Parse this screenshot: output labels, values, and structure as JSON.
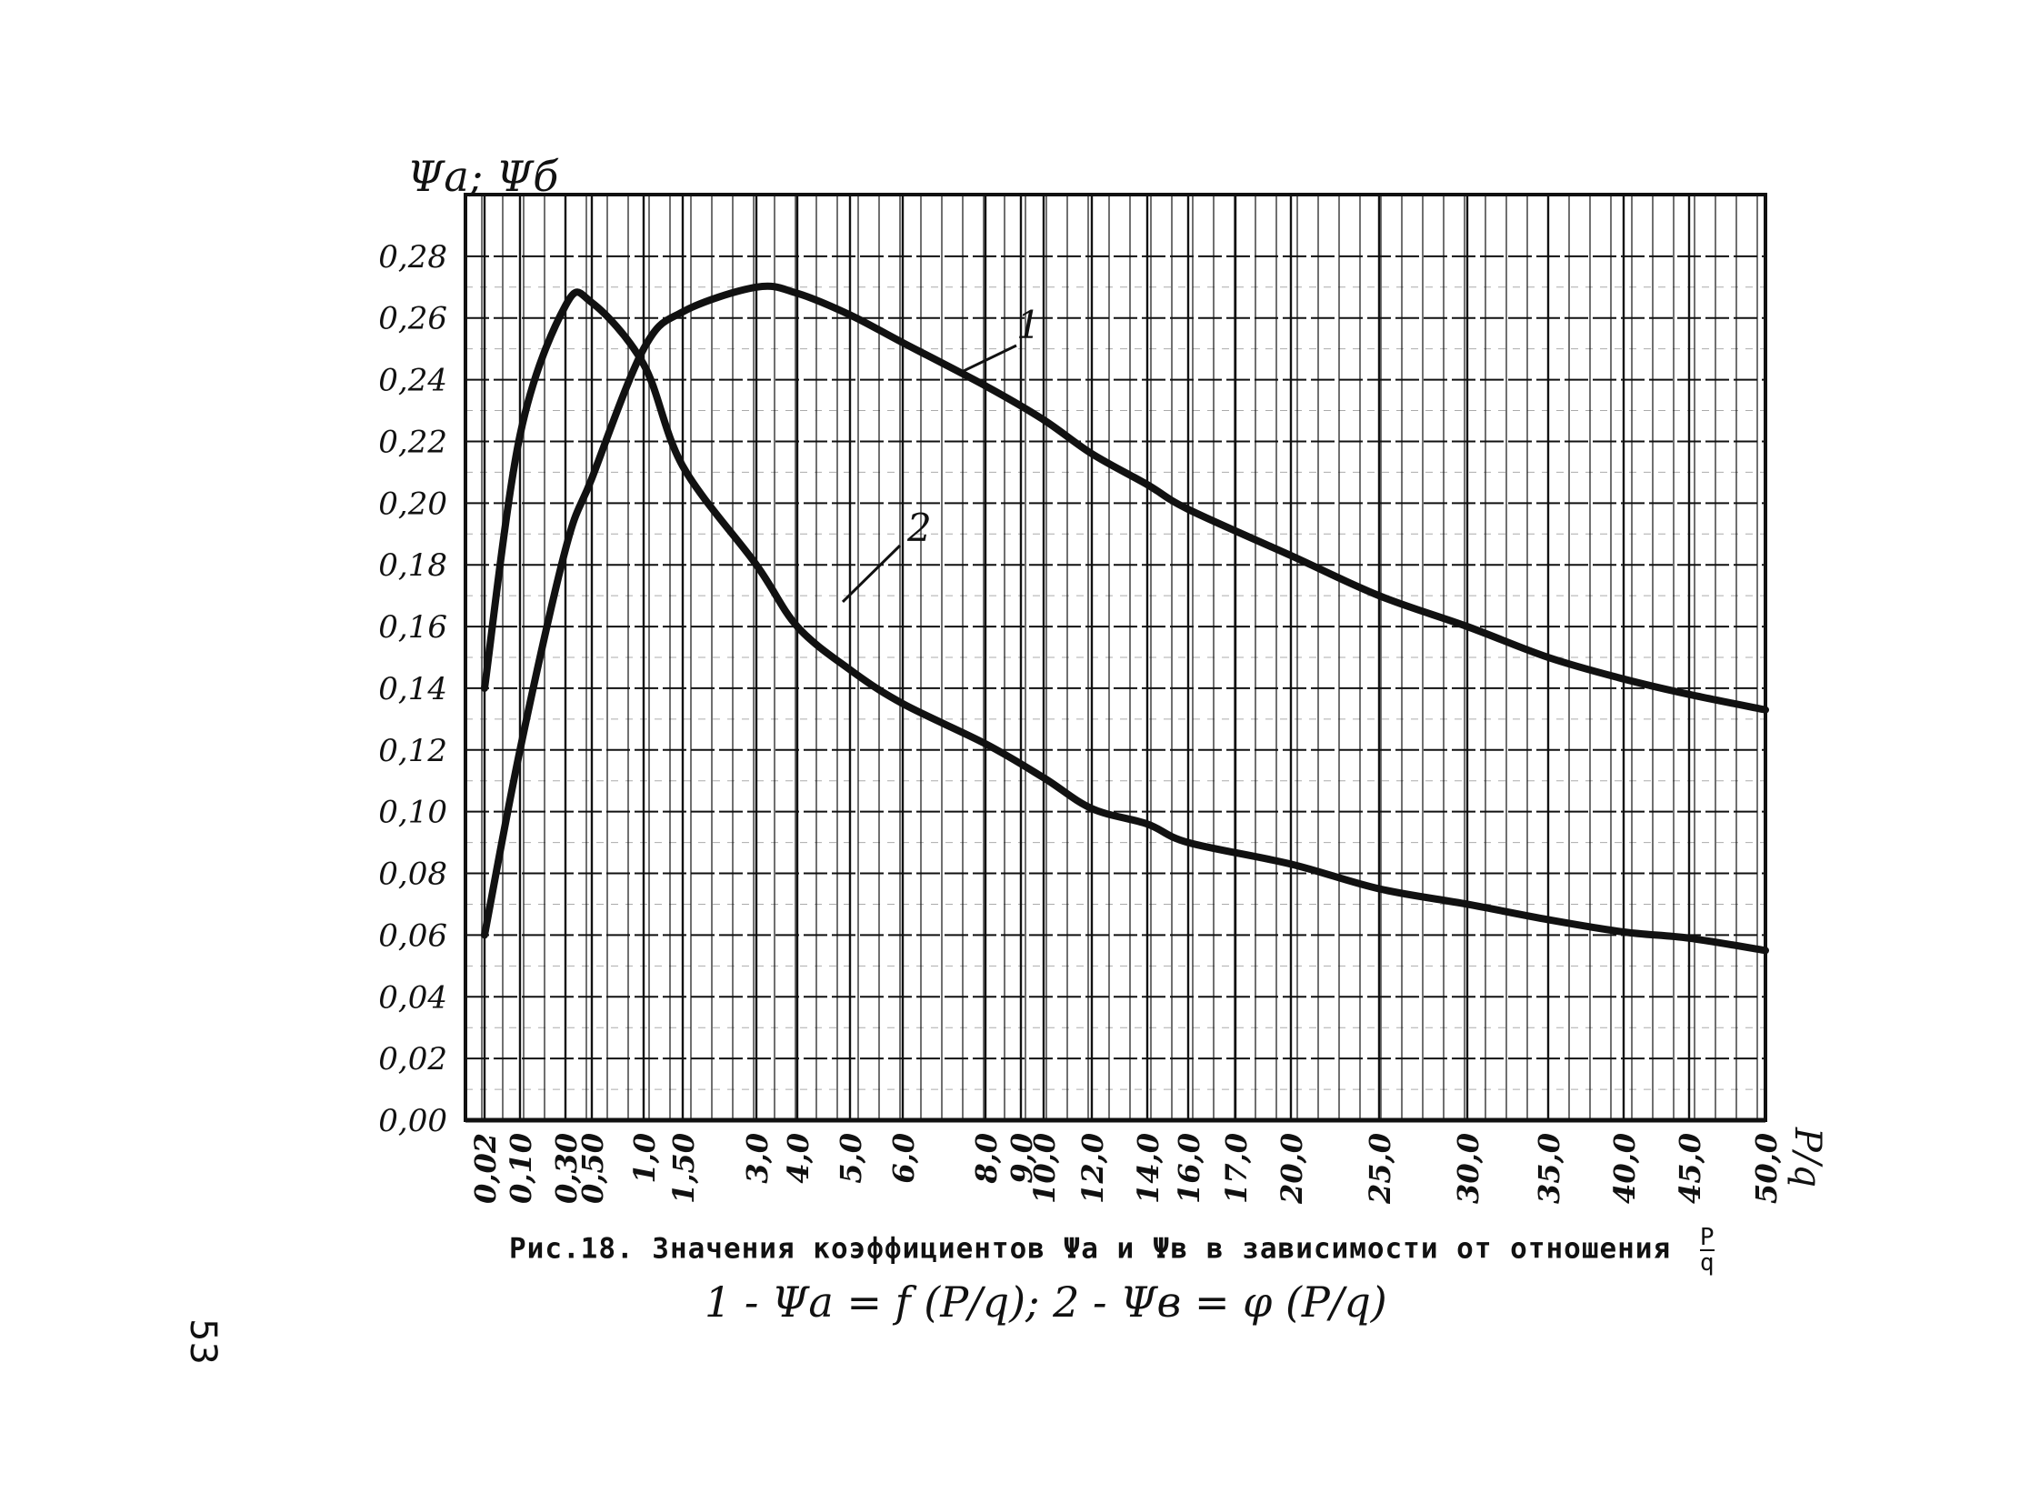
{
  "chart_data": {
    "type": "line",
    "ylabel": "Ψa; Ψб",
    "xlabel": "P/q",
    "y_ticks": [
      "0,00",
      "0,02",
      "0,04",
      "0,06",
      "0,08",
      "0,10",
      "0,12",
      "0,14",
      "0,16",
      "0,18",
      "0,20",
      "0,22",
      "0,24",
      "0,26",
      "0,28"
    ],
    "ylim": [
      0,
      0.3
    ],
    "x_scale": "nonuniform (custom ruled grid)",
    "x_ticks": [
      "0,02",
      "0,10",
      "0,30",
      "0,50",
      "1,0",
      "1,50",
      "3,0",
      "4,0",
      "5,0",
      "6,0",
      "8,0",
      "9,0",
      "10,0",
      "12,0",
      "14,0",
      "16,0",
      "17,0",
      "20,0",
      "25,0",
      "30,0",
      "35,0",
      "40,0",
      "45,0",
      "50,0"
    ],
    "grid": true,
    "series": [
      {
        "name": "1",
        "x": [
          0.02,
          0.1,
          0.3,
          0.5,
          1.0,
          1.5,
          3.0,
          4.0,
          5.0,
          6.0,
          8.0,
          10.0,
          12.0,
          14.0,
          16.0,
          20.0,
          25.0,
          30.0,
          35.0,
          40.0,
          45.0,
          50.0
        ],
        "y": [
          0.06,
          0.12,
          0.185,
          0.208,
          0.25,
          0.262,
          0.27,
          0.268,
          0.261,
          0.252,
          0.238,
          0.227,
          0.216,
          0.206,
          0.198,
          0.183,
          0.17,
          0.16,
          0.15,
          0.143,
          0.138,
          0.133
        ]
      },
      {
        "name": "2",
        "x": [
          0.02,
          0.1,
          0.3,
          0.5,
          1.0,
          1.5,
          3.0,
          4.0,
          5.0,
          6.0,
          8.0,
          10.0,
          12.0,
          14.0,
          16.0,
          20.0,
          25.0,
          30.0,
          35.0,
          40.0,
          45.0,
          50.0
        ],
        "y": [
          0.14,
          0.222,
          0.264,
          0.265,
          0.245,
          0.212,
          0.18,
          0.16,
          0.146,
          0.135,
          0.122,
          0.111,
          0.101,
          0.096,
          0.09,
          0.083,
          0.075,
          0.07,
          0.065,
          0.061,
          0.059,
          0.055
        ]
      }
    ],
    "curve_labels": [
      "1",
      "2"
    ]
  },
  "caption": "Рис.18. Значения коэффициентов Ψa и Ψв в зависимости от отношения",
  "caption_fraction": {
    "num": "P",
    "den": "q"
  },
  "formula": "1 - Ψa = f (P/q);   2 - Ψв = φ (P/q)",
  "page_number": "53",
  "colors": {
    "ink": "#111111",
    "paper": "#ffffff"
  }
}
